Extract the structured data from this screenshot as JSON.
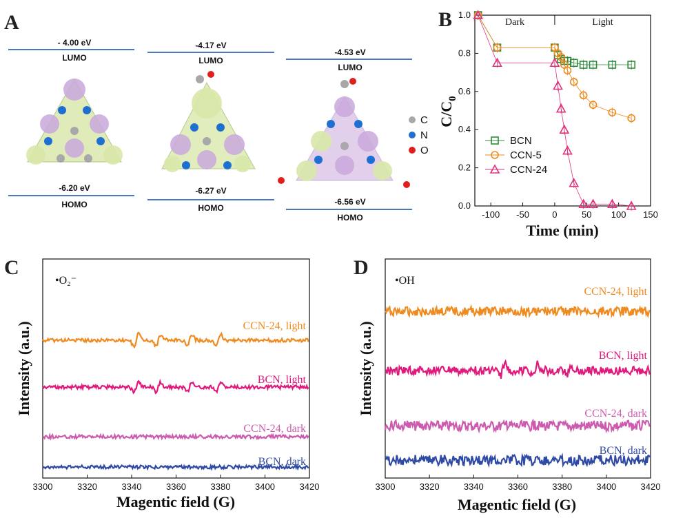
{
  "panels": {
    "a": "A",
    "b": "B",
    "c": "C",
    "d": "D"
  },
  "panel_a": {
    "orbitals": [
      {
        "lumo_energy": "- 4.00 eV",
        "lumo_label": "LUMO",
        "homo_energy": "-6.20 eV",
        "homo_label": "HOMO"
      },
      {
        "lumo_energy": "-4.17 eV",
        "lumo_label": "LUMO",
        "homo_energy": "-6.27 eV",
        "homo_label": "HOMO"
      },
      {
        "lumo_energy": "-4.53 eV",
        "lumo_label": "LUMO",
        "homo_energy": "-6.56 eV",
        "homo_label": "HOMO"
      }
    ],
    "element_legend": [
      {
        "symbol": "C",
        "color": "#a8a8a8"
      },
      {
        "symbol": "N",
        "color": "#1f6fd1"
      },
      {
        "symbol": "O",
        "color": "#e0201b"
      }
    ],
    "colors": {
      "level_line": "#4a76c2",
      "lobe_green": "#d8e8a8",
      "lobe_purple": "#c9a8dc"
    }
  },
  "chart_data": [
    {
      "type": "line",
      "panel": "B",
      "xlabel": "Time (min)",
      "ylabel_main": "C/C",
      "ylabel_sub": "0",
      "xlim": [
        -125,
        150
      ],
      "ylim": [
        0.0,
        1.0
      ],
      "xticks": [
        "-100",
        "-50",
        "0",
        "50",
        "100",
        "150"
      ],
      "yticks": [
        "0.0",
        "0.2",
        "0.4",
        "0.6",
        "0.8",
        "1.0"
      ],
      "regions": [
        {
          "label": "Dark"
        },
        {
          "label": "Light"
        }
      ],
      "legend_placement": "lower-left",
      "series": [
        {
          "name": "BCN",
          "marker": "square",
          "color": "#2e8b3a",
          "x": [
            -120,
            -90,
            0,
            5,
            10,
            15,
            20,
            30,
            45,
            60,
            90,
            120
          ],
          "y": [
            1.0,
            0.83,
            0.83,
            0.79,
            0.77,
            0.76,
            0.76,
            0.75,
            0.74,
            0.74,
            0.74,
            0.74
          ]
        },
        {
          "name": "CCN-5",
          "marker": "circle",
          "color": "#ef8a1e",
          "x": [
            -120,
            -90,
            0,
            5,
            10,
            15,
            20,
            30,
            45,
            60,
            90,
            120
          ],
          "y": [
            1.0,
            0.83,
            0.83,
            0.8,
            0.78,
            0.74,
            0.71,
            0.65,
            0.58,
            0.53,
            0.49,
            0.46
          ]
        },
        {
          "name": "CCN-24",
          "marker": "triangle",
          "color": "#e0307a",
          "x": [
            -120,
            -90,
            0,
            5,
            10,
            15,
            20,
            30,
            45,
            60,
            90,
            120
          ],
          "y": [
            1.0,
            0.75,
            0.75,
            0.63,
            0.51,
            0.4,
            0.29,
            0.12,
            0.01,
            0.01,
            0.01,
            0.0
          ]
        }
      ]
    },
    {
      "type": "line",
      "panel": "C",
      "annotation": "•O₂⁻",
      "xlabel": "Magentic field (G)",
      "ylabel": "Intensity (a.u.)",
      "xlim": [
        3300,
        3420
      ],
      "xticks": [
        "3300",
        "3320",
        "3340",
        "3360",
        "3380",
        "3400",
        "3420"
      ],
      "peaks": [
        3342,
        3352,
        3366,
        3379
      ],
      "series": [
        {
          "name": "CCN-24, light",
          "color": "#ef8a1e",
          "signal": "spectrum"
        },
        {
          "name": "BCN, light",
          "color": "#e0197d",
          "signal": "spectrum"
        },
        {
          "name": "CCN-24, dark",
          "color": "#cc5aae",
          "signal": "noise"
        },
        {
          "name": "BCN, dark",
          "color": "#2f4aa5",
          "signal": "noise"
        }
      ]
    },
    {
      "type": "line",
      "panel": "D",
      "annotation": "•OH",
      "xlabel": "Magentic field (G)",
      "ylabel": "Intensity (a.u.)",
      "xlim": [
        3300,
        3420
      ],
      "xticks": [
        "3300",
        "3320",
        "3340",
        "3360",
        "3380",
        "3400",
        "3420"
      ],
      "peaks": [
        3338,
        3353,
        3368,
        3383
      ],
      "series": [
        {
          "name": "CCN-24, light",
          "color": "#ef8a1e",
          "signal": "noise"
        },
        {
          "name": "BCN, light",
          "color": "#e0197d",
          "signal": "spectrum"
        },
        {
          "name": "CCN-24, dark",
          "color": "#cc5aae",
          "signal": "noise"
        },
        {
          "name": "BCN, dark",
          "color": "#2f4aa5",
          "signal": "noise"
        }
      ]
    }
  ]
}
